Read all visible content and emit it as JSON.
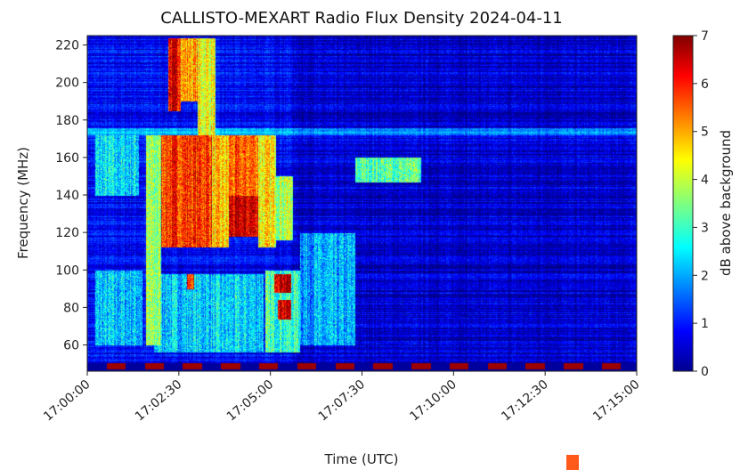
{
  "chart_data": {
    "type": "heatmap",
    "title": "CALLISTO-MEXART Radio Flux Density 2024-04-11",
    "xlabel": "Time (UTC)",
    "ylabel": "Frequency (MHz)",
    "xlim": [
      "17:00:00",
      "17:15:00"
    ],
    "ylim": [
      46,
      225
    ],
    "x_ticks": [
      "17:00:00",
      "17:02:30",
      "17:05:00",
      "17:07:30",
      "17:10:00",
      "17:12:30",
      "17:15:00"
    ],
    "y_ticks": [
      60,
      80,
      100,
      120,
      140,
      160,
      180,
      200,
      220
    ],
    "colorbar": {
      "label": "dB above background",
      "range": [
        0,
        7
      ],
      "ticks": [
        0,
        1,
        2,
        3,
        4,
        5,
        6,
        7
      ],
      "colormap": "jet"
    },
    "regions": [
      {
        "t0": 1.6,
        "t1": 2.0,
        "f0": 60,
        "f1": 172,
        "db": 3.6
      },
      {
        "t0": 2.2,
        "t1": 2.55,
        "f0": 185,
        "f1": 224,
        "db": 6.2
      },
      {
        "t0": 2.55,
        "t1": 3.0,
        "f0": 190,
        "f1": 224,
        "db": 5.0
      },
      {
        "t0": 3.0,
        "t1": 3.5,
        "f0": 170,
        "f1": 224,
        "db": 4.3
      },
      {
        "t0": 2.0,
        "t1": 3.4,
        "f0": 112,
        "f1": 172,
        "db": 5.8
      },
      {
        "t0": 3.4,
        "t1": 3.85,
        "f0": 112,
        "f1": 172,
        "db": 4.6
      },
      {
        "t0": 3.85,
        "t1": 4.65,
        "f0": 140,
        "f1": 172,
        "db": 5.4
      },
      {
        "t0": 3.85,
        "t1": 4.65,
        "f0": 118,
        "f1": 140,
        "db": 6.4
      },
      {
        "t0": 4.65,
        "t1": 5.15,
        "f0": 112,
        "f1": 172,
        "db": 4.4
      },
      {
        "t0": 5.15,
        "t1": 5.6,
        "f0": 116,
        "f1": 150,
        "db": 3.9
      },
      {
        "t0": 5.1,
        "t1": 5.55,
        "f0": 88,
        "f1": 98,
        "db": 6.7
      },
      {
        "t0": 5.2,
        "t1": 5.55,
        "f0": 74,
        "f1": 84,
        "db": 6.5
      },
      {
        "t0": 2.7,
        "t1": 2.9,
        "f0": 90,
        "f1": 98,
        "db": 5.8
      },
      {
        "t0": 4.85,
        "t1": 5.8,
        "f0": 56,
        "f1": 100,
        "db": 3.0
      },
      {
        "t0": 1.8,
        "t1": 4.8,
        "f0": 56,
        "f1": 98,
        "db": 2.3
      },
      {
        "t0": 7.3,
        "t1": 9.1,
        "f0": 147,
        "f1": 160,
        "db": 3.2
      },
      {
        "t0": 0.2,
        "t1": 1.5,
        "f0": 60,
        "f1": 100,
        "db": 2.2
      },
      {
        "t0": 0.2,
        "t1": 1.4,
        "f0": 140,
        "f1": 172,
        "db": 2.4
      },
      {
        "t0": 5.8,
        "t1": 7.3,
        "f0": 60,
        "f1": 120,
        "db": 2.0
      }
    ],
    "background_db": 0.9
  }
}
